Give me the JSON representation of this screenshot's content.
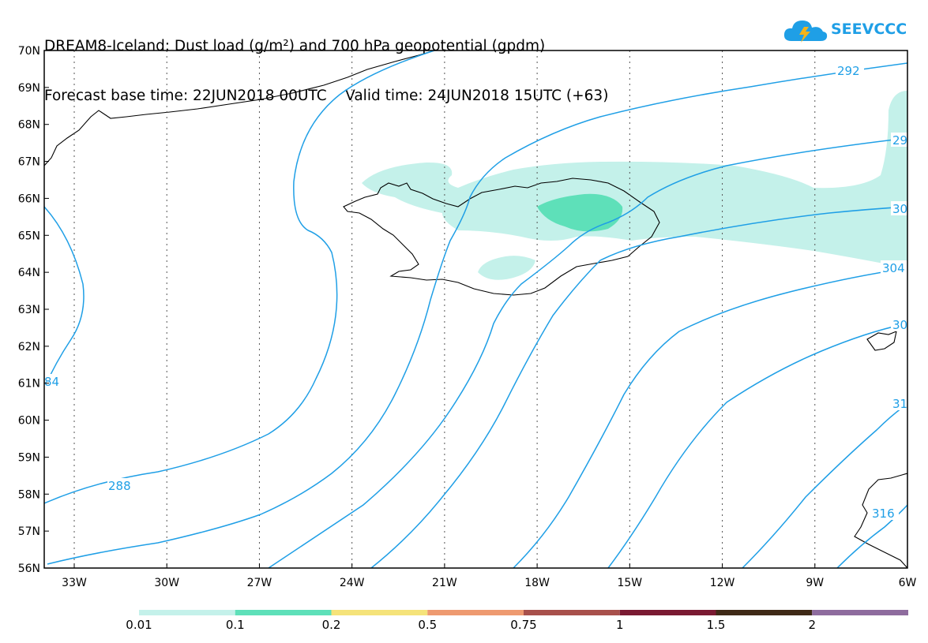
{
  "title": {
    "line1": "DREAM8-Iceland: Dust load (g/m²) and 700 hPa geopotential (gpdm)",
    "line2": "Forecast base time: 22JUN2018 00UTC    Valid time: 24JUN2018 15UTC (+63)"
  },
  "logo": {
    "text": "SEEVCCC"
  },
  "map": {
    "lat_ticks": [
      "70N",
      "69N",
      "68N",
      "67N",
      "66N",
      "65N",
      "64N",
      "63N",
      "62N",
      "61N",
      "60N",
      "59N",
      "58N",
      "57N",
      "56N"
    ],
    "lon_ticks": [
      "33W",
      "30W",
      "27W",
      "24W",
      "21W",
      "18W",
      "15W",
      "12W",
      "9W",
      "6W"
    ],
    "contour_labels": [
      "292",
      "29",
      "30",
      "304",
      "30",
      "31",
      "316",
      "288",
      "84"
    ]
  },
  "legend": {
    "colors": [
      "#c4f1ea",
      "#5ee0b9",
      "#f5e37a",
      "#ee9a70",
      "#a8504b",
      "#7a1a32",
      "#3f2a17",
      "#8e6c9e"
    ],
    "labels": [
      "0.01",
      "0.1",
      "0.2",
      "0.5",
      "0.75",
      "1",
      "1.5",
      "2"
    ]
  }
}
